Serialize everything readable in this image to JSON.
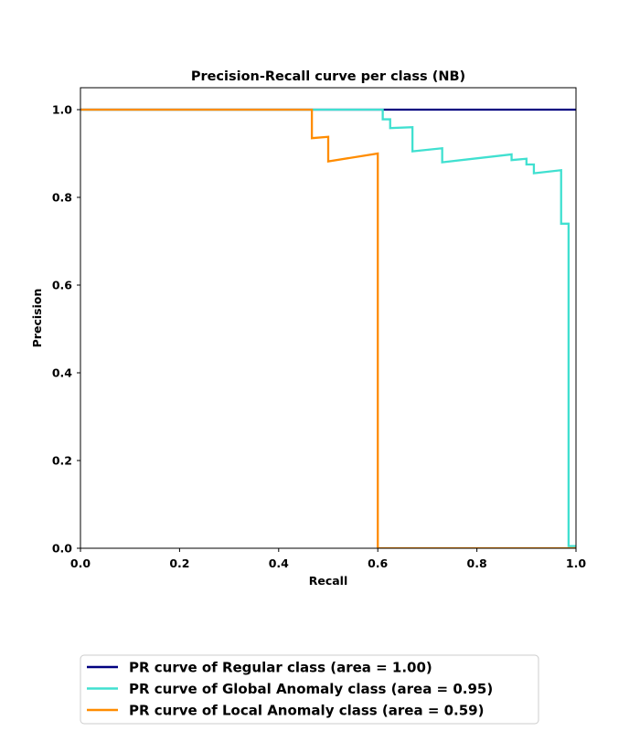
{
  "chart_data": {
    "type": "line",
    "title": "Precision-Recall curve per class (NB)",
    "xlabel": "Recall",
    "ylabel": "Precision",
    "xlim": [
      0.0,
      1.0
    ],
    "ylim": [
      0.0,
      1.05
    ],
    "xticks": [
      "0.0",
      "0.2",
      "0.4",
      "0.6",
      "0.8",
      "1.0"
    ],
    "yticks": [
      "0.0",
      "0.2",
      "0.4",
      "0.6",
      "0.8",
      "1.0"
    ],
    "grid": false,
    "legend_position": "bottom-center, outside",
    "series": [
      {
        "name": "PR curve of Regular class (area = 1.00)",
        "color": "#000080",
        "x": [
          0.0,
          0.47,
          1.0
        ],
        "y": [
          1.0,
          1.0,
          1.0
        ]
      },
      {
        "name": "PR curve of Global Anomaly class (area = 0.95)",
        "color": "#40e0d0",
        "x": [
          0.0,
          0.61,
          0.61,
          0.625,
          0.625,
          0.67,
          0.67,
          0.73,
          0.73,
          0.87,
          0.87,
          0.9,
          0.9,
          0.915,
          0.915,
          0.97,
          0.97,
          0.985,
          0.985,
          1.0
        ],
        "y": [
          1.0,
          1.0,
          0.978,
          0.978,
          0.958,
          0.96,
          0.905,
          0.912,
          0.88,
          0.898,
          0.885,
          0.888,
          0.875,
          0.875,
          0.855,
          0.862,
          0.74,
          0.74,
          0.005,
          0.005
        ]
      },
      {
        "name": "PR curve of Local Anomaly class (area = 0.59)",
        "color": "#ff8c00",
        "x": [
          0.0,
          0.467,
          0.467,
          0.5,
          0.5,
          0.6,
          0.6,
          1.0
        ],
        "y": [
          1.0,
          1.0,
          0.935,
          0.938,
          0.882,
          0.9,
          0.0,
          0.0
        ]
      }
    ]
  }
}
